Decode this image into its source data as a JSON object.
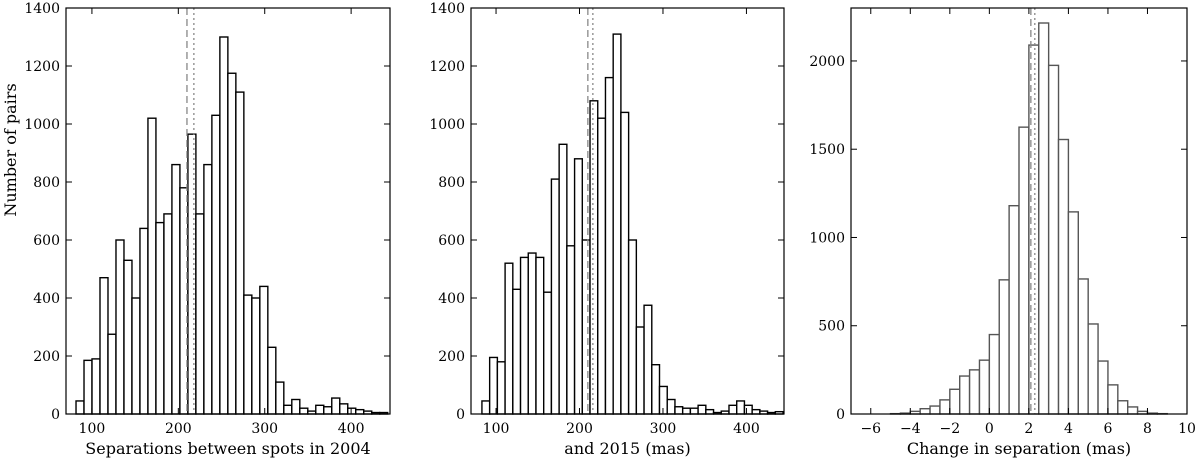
{
  "figure": {
    "ylabel": "Number of pairs"
  },
  "chart_data": [
    {
      "type": "bar",
      "subtype": "histogram",
      "xlabel": "Separations between spots in 2004",
      "ylabel": "Number of pairs",
      "xlim": [
        70,
        445
      ],
      "ylim": [
        0,
        1400
      ],
      "xticks": [
        100,
        200,
        300,
        400
      ],
      "yticks": [
        0,
        200,
        400,
        600,
        800,
        1000,
        1200,
        1400
      ],
      "bin_width": 9.25,
      "bin_start": 81.6,
      "counts": [
        45,
        185,
        190,
        470,
        275,
        600,
        530,
        400,
        640,
        1020,
        660,
        690,
        860,
        780,
        965,
        690,
        860,
        1030,
        1300,
        1175,
        1110,
        410,
        400,
        440,
        230,
        110,
        30,
        50,
        20,
        10,
        30,
        25,
        55,
        35,
        20,
        15,
        10,
        5,
        5
      ],
      "markers": [
        {
          "style": "dashed",
          "x": 210
        },
        {
          "style": "dotted",
          "x": 218
        }
      ],
      "grid": false,
      "style": {
        "line_color": "#000000",
        "fill": "#ffffff",
        "marker_color": "#888888"
      }
    },
    {
      "type": "bar",
      "subtype": "histogram",
      "xlabel": "and 2015 (mas)",
      "ylabel": "",
      "xlim": [
        70,
        445
      ],
      "ylim": [
        0,
        1400
      ],
      "xticks": [
        100,
        200,
        300,
        400
      ],
      "yticks": [
        0,
        200,
        400,
        600,
        800,
        1000,
        1200,
        1400
      ],
      "bin_width": 9.25,
      "bin_start": 83.1,
      "counts": [
        45,
        195,
        180,
        520,
        430,
        540,
        555,
        540,
        420,
        810,
        930,
        580,
        880,
        600,
        1080,
        1020,
        1160,
        1310,
        1040,
        600,
        300,
        375,
        170,
        95,
        50,
        25,
        20,
        20,
        30,
        15,
        5,
        10,
        30,
        45,
        30,
        15,
        10,
        5,
        8
      ],
      "markers": [
        {
          "style": "dashed",
          "x": 210
        },
        {
          "style": "dotted",
          "x": 216
        }
      ],
      "grid": false,
      "style": {
        "line_color": "#000000",
        "fill": "#ffffff",
        "marker_color": "#888888"
      }
    },
    {
      "type": "bar",
      "subtype": "histogram",
      "xlabel": "Change in separation (mas)",
      "ylabel": "",
      "xlim": [
        -7,
        10
      ],
      "ylim": [
        0,
        2300
      ],
      "xticks": [
        -6,
        -4,
        -2,
        0,
        2,
        4,
        6,
        8,
        10
      ],
      "yticks": [
        0,
        500,
        1000,
        1500,
        2000
      ],
      "bin_width": 0.5,
      "bin_start": -6.0,
      "counts": [
        0,
        0,
        2,
        5,
        15,
        30,
        45,
        80,
        140,
        215,
        250,
        305,
        450,
        760,
        1180,
        1625,
        2090,
        2215,
        1975,
        1555,
        1145,
        765,
        510,
        300,
        165,
        75,
        40,
        15,
        5,
        2,
        0,
        0
      ],
      "markers": [
        {
          "style": "dashed",
          "x": 2.1
        },
        {
          "style": "dotted",
          "x": 2.3
        }
      ],
      "grid": false,
      "style": {
        "line_color": "#555555",
        "fill": "#ffffff",
        "marker_color": "#888888"
      }
    }
  ]
}
